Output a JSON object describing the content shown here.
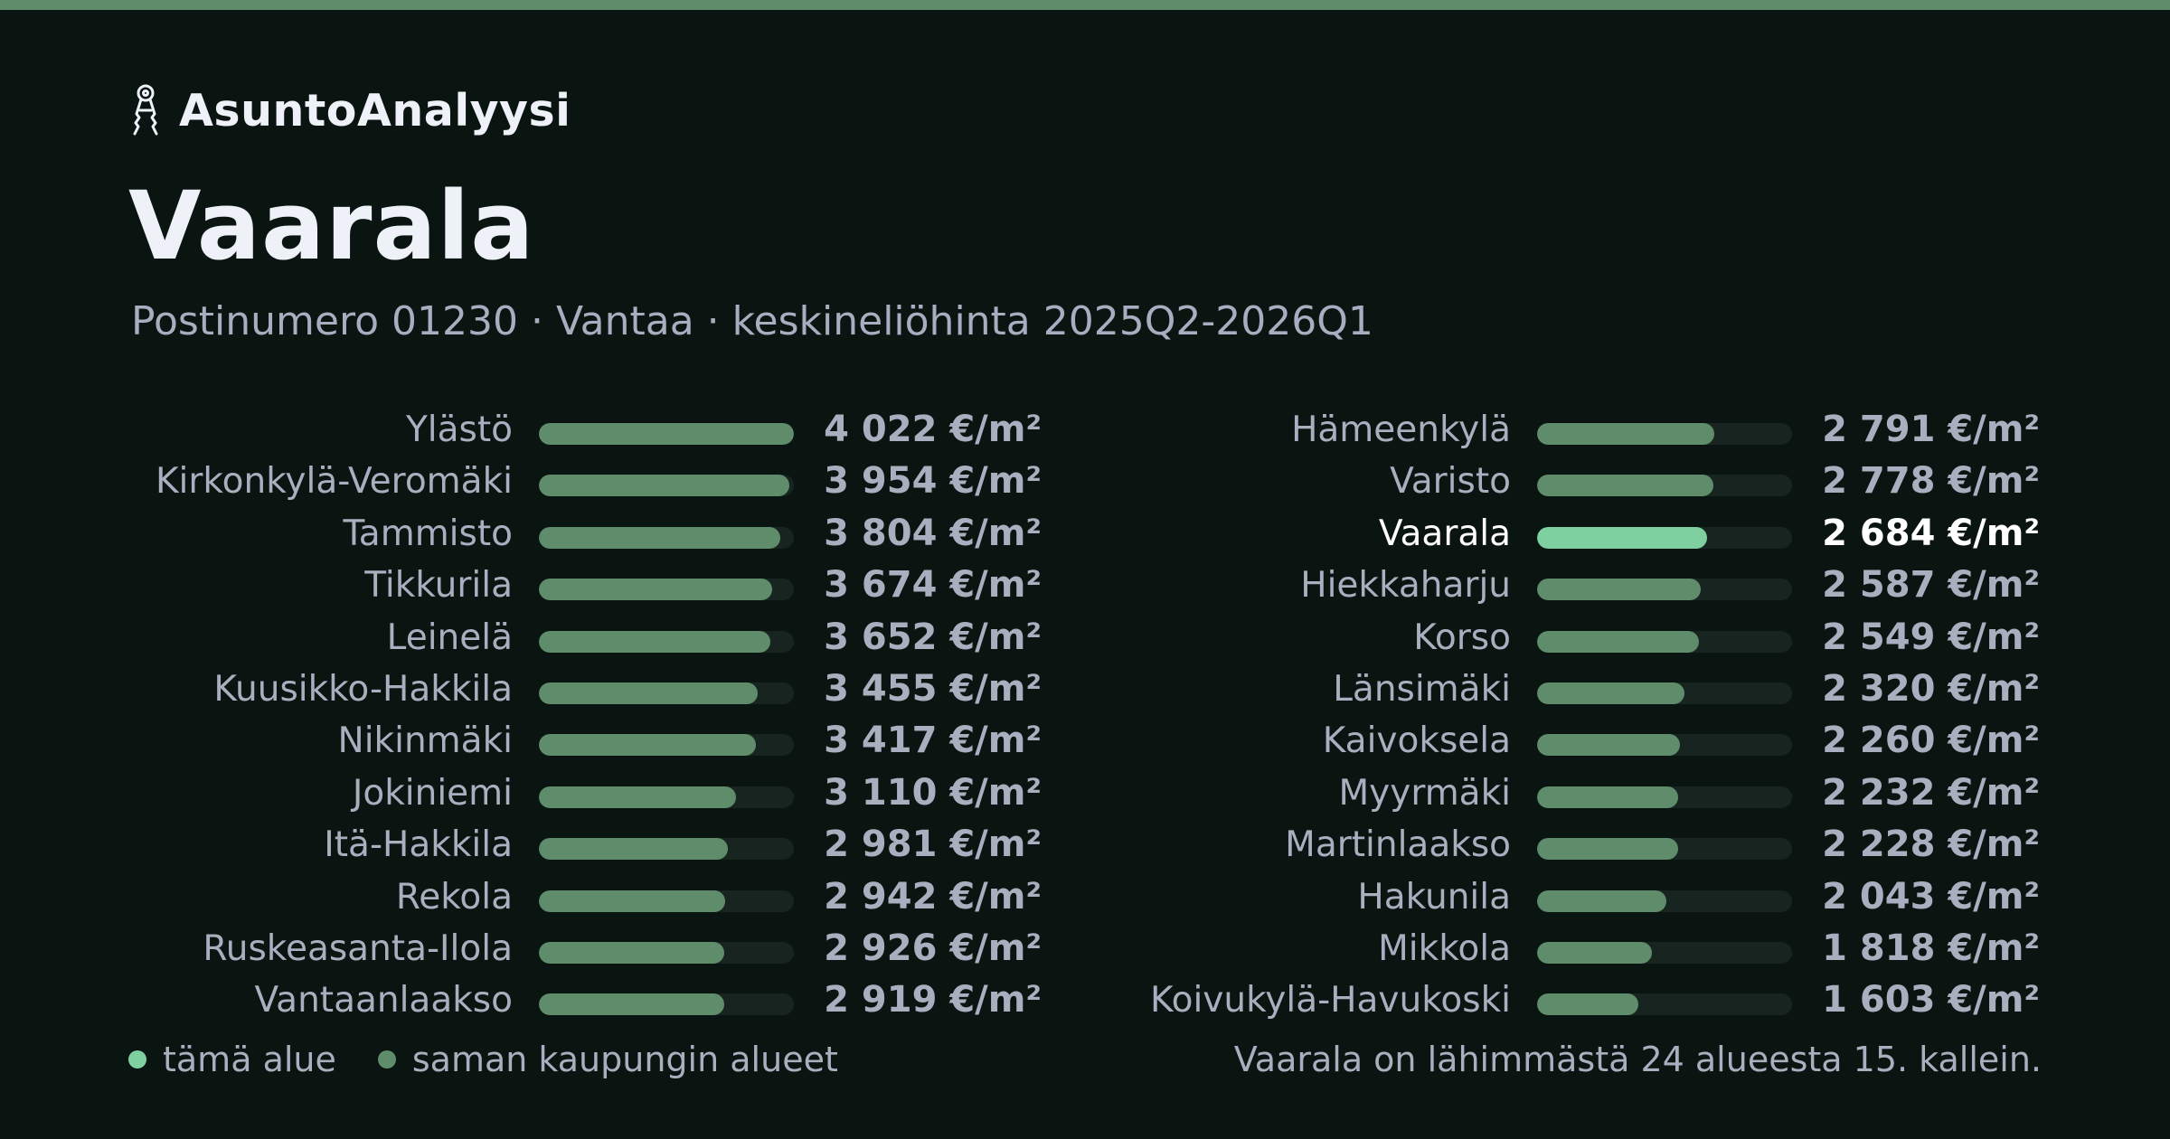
{
  "brand": {
    "name": "AsuntoAnalyysi",
    "icon": "keys-icon"
  },
  "colors": {
    "accent": "#5f8d6c",
    "highlight": "#7ed0a0",
    "background": "#0a1512",
    "track": "#17241f"
  },
  "header": {
    "title": "Vaarala",
    "subtitle": "Postinumero 01230 · Vantaa · keskineliöhinta 2025Q2-2026Q1"
  },
  "chart_data": {
    "type": "bar",
    "orientation": "horizontal",
    "unit": "€/m²",
    "highlight": "Vaarala",
    "xlim": [
      0,
      4022
    ],
    "categories": [
      "Ylästö",
      "Kirkonkylä-Veromäki",
      "Tammisto",
      "Tikkurila",
      "Leinelä",
      "Kuusikko-Hakkila",
      "Nikinmäki",
      "Jokiniemi",
      "Itä-Hakkila",
      "Rekola",
      "Ruskeasanta-Ilola",
      "Vantaanlaakso",
      "Hämeenkylä",
      "Varisto",
      "Vaarala",
      "Hiekkaharju",
      "Korso",
      "Länsimäki",
      "Kaivoksela",
      "Myyrmäki",
      "Martinlaakso",
      "Hakunila",
      "Mikkola",
      "Koivukylä-Havukoski"
    ],
    "values": [
      4022,
      3954,
      3804,
      3674,
      3652,
      3455,
      3417,
      3110,
      2981,
      2942,
      2926,
      2919,
      2791,
      2778,
      2684,
      2587,
      2549,
      2320,
      2260,
      2232,
      2228,
      2043,
      1818,
      1603
    ],
    "labels": [
      "4 022 €/m²",
      "3 954 €/m²",
      "3 804 €/m²",
      "3 674 €/m²",
      "3 652 €/m²",
      "3 455 €/m²",
      "3 417 €/m²",
      "3 110 €/m²",
      "2 981 €/m²",
      "2 942 €/m²",
      "2 926 €/m²",
      "2 919 €/m²",
      "2 791 €/m²",
      "2 778 €/m²",
      "2 684 €/m²",
      "2 587 €/m²",
      "2 549 €/m²",
      "2 320 €/m²",
      "2 260 €/m²",
      "2 232 €/m²",
      "2 228 €/m²",
      "2 043 €/m²",
      "1 818 €/m²",
      "1 603 €/m²"
    ]
  },
  "legend": {
    "this_area": "tämä alue",
    "same_city": "saman kaupungin alueet"
  },
  "summary": "Vaarala on lähimmästä 24 alueesta 15. kallein."
}
